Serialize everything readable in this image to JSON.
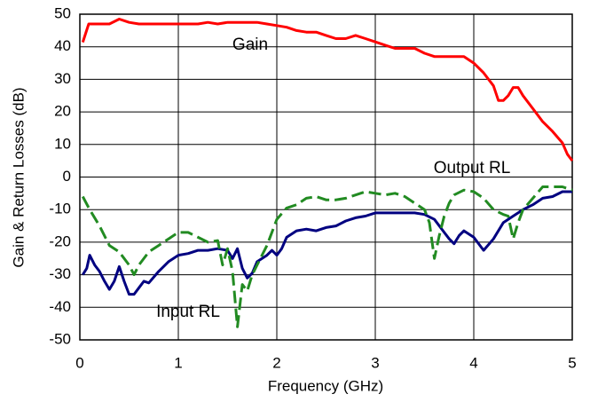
{
  "chart_data": {
    "type": "line",
    "xlabel": "Frequency (GHz)",
    "ylabel": "Gain & Return Losses (dB)",
    "xlim": [
      0,
      5
    ],
    "ylim": [
      -50,
      50
    ],
    "xticks": [
      0,
      1,
      2,
      3,
      4,
      5
    ],
    "yticks": [
      50,
      40,
      30,
      20,
      10,
      0,
      -10,
      -20,
      -30,
      -40,
      -50
    ],
    "grid": true,
    "series": [
      {
        "name": "Gain",
        "color": "#ff0000",
        "dash": false,
        "x": [
          0.03,
          0.09,
          0.2,
          0.3,
          0.4,
          0.5,
          0.6,
          0.8,
          1.0,
          1.2,
          1.3,
          1.4,
          1.5,
          1.8,
          1.9,
          2.0,
          2.1,
          2.2,
          2.3,
          2.4,
          2.5,
          2.6,
          2.7,
          2.8,
          2.9,
          3.0,
          3.1,
          3.2,
          3.4,
          3.5,
          3.6,
          3.8,
          3.9,
          4.0,
          4.1,
          4.2,
          4.25,
          4.3,
          4.35,
          4.4,
          4.45,
          4.5,
          4.6,
          4.7,
          4.8,
          4.9,
          4.95,
          5.0
        ],
        "values": [
          41.4,
          47,
          47,
          47,
          48.5,
          47.5,
          47,
          47,
          47,
          47,
          47.5,
          47,
          47.5,
          47.5,
          47,
          46.5,
          46,
          45,
          44.5,
          44.5,
          43.5,
          42.5,
          42.5,
          43.5,
          42.5,
          41.5,
          40.5,
          39.5,
          39.5,
          38,
          37,
          37,
          37,
          35,
          32,
          28,
          23.5,
          23.5,
          25,
          27.5,
          27.5,
          25,
          21,
          17,
          14,
          10.5,
          7,
          5
        ]
      },
      {
        "name": "Input RL",
        "color": "#000080",
        "dash": false,
        "x": [
          0.03,
          0.07,
          0.1,
          0.15,
          0.2,
          0.25,
          0.3,
          0.35,
          0.4,
          0.45,
          0.5,
          0.55,
          0.6,
          0.65,
          0.7,
          0.8,
          0.9,
          1.0,
          1.1,
          1.2,
          1.3,
          1.4,
          1.5,
          1.55,
          1.6,
          1.65,
          1.7,
          1.75,
          1.8,
          1.9,
          1.95,
          2.0,
          2.05,
          2.1,
          2.2,
          2.3,
          2.4,
          2.5,
          2.6,
          2.7,
          2.8,
          2.9,
          3.0,
          3.2,
          3.4,
          3.5,
          3.6,
          3.7,
          3.75,
          3.8,
          3.85,
          3.9,
          4.0,
          4.1,
          4.2,
          4.3,
          4.4,
          4.5,
          4.6,
          4.7,
          4.8,
          4.9,
          5.0
        ],
        "values": [
          -30,
          -28,
          -24,
          -27,
          -29,
          -32,
          -34.5,
          -32,
          -27.5,
          -32,
          -36,
          -36,
          -34,
          -32,
          -32.5,
          -29,
          -26,
          -24,
          -23.5,
          -22.5,
          -22.5,
          -22,
          -22.5,
          -25,
          -22,
          -28,
          -31,
          -29.5,
          -26,
          -24,
          -22.5,
          -24,
          -22,
          -18.5,
          -16.5,
          -16,
          -16.5,
          -15.5,
          -15,
          -13.5,
          -12.5,
          -12,
          -11,
          -11,
          -11,
          -11.5,
          -13,
          -17,
          -19,
          -20.5,
          -18,
          -16.5,
          -18.5,
          -22.5,
          -19,
          -14,
          -12,
          -10,
          -8.5,
          -6.5,
          -6,
          -4.5,
          -4.5
        ]
      },
      {
        "name": "Output RL",
        "color": "#228b22",
        "dash": true,
        "x": [
          0.03,
          0.1,
          0.2,
          0.3,
          0.4,
          0.5,
          0.55,
          0.6,
          0.7,
          0.8,
          0.9,
          1.0,
          1.1,
          1.2,
          1.3,
          1.4,
          1.45,
          1.5,
          1.55,
          1.6,
          1.65,
          1.7,
          1.75,
          1.8,
          1.9,
          2.0,
          2.1,
          2.2,
          2.3,
          2.4,
          2.5,
          2.6,
          2.7,
          2.8,
          2.9,
          3.0,
          3.1,
          3.2,
          3.3,
          3.4,
          3.5,
          3.55,
          3.6,
          3.65,
          3.7,
          3.75,
          3.8,
          3.9,
          4.0,
          4.1,
          4.2,
          4.3,
          4.35,
          4.4,
          4.45,
          4.5,
          4.6,
          4.7,
          4.8,
          4.9,
          5.0
        ],
        "values": [
          -6,
          -10,
          -15,
          -21,
          -23,
          -27,
          -30,
          -27,
          -23,
          -21,
          -19,
          -17,
          -17,
          -18.5,
          -20,
          -19.5,
          -27,
          -22,
          -29,
          -46,
          -33,
          -35,
          -30,
          -27,
          -21,
          -13,
          -9.5,
          -8.5,
          -6.5,
          -6,
          -7,
          -7,
          -6.5,
          -5.5,
          -4.5,
          -5,
          -5.5,
          -5,
          -6,
          -8,
          -10,
          -14,
          -25,
          -18,
          -12,
          -8,
          -5.5,
          -4,
          -4.5,
          -6.5,
          -10,
          -11.5,
          -12,
          -19,
          -14,
          -10,
          -6.5,
          -3,
          -3,
          -3,
          -4
        ]
      }
    ]
  }
}
